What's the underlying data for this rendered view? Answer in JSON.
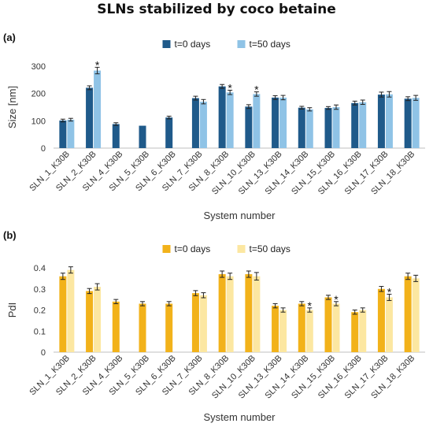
{
  "title": "SLNs stabilized by coco betaine",
  "chart_data": [
    {
      "type": "bar",
      "panel_label": "(a)",
      "xlabel": "System number",
      "ylabel": "Size  [nm]",
      "ylim": [
        0,
        300
      ],
      "yticks": [
        "0",
        "100",
        "200",
        "300"
      ],
      "grid": false,
      "legend_position": "top",
      "categories": [
        "SLN_1_K30B",
        "SLN_2_K30B",
        "SLN_4_K30B",
        "SLN_5_K30B",
        "SLN_6_K30B",
        "SLN_7_K30B",
        "SLN_8_K30B",
        "SLN_10_K30B",
        "SLN_13_K30B",
        "SLN_14_K30B",
        "SLN_15_K30B",
        "SLN_16_K30B",
        "SLN_17_K30B",
        "SLN_18_K30B"
      ],
      "series": [
        {
          "name": "t=0 days",
          "color": "#1f5a8a",
          "values": [
            101,
            221,
            88,
            82,
            112,
            183,
            226,
            152,
            185,
            148,
            147,
            165,
            196,
            181
          ],
          "errors": [
            5,
            7,
            5,
            0,
            5,
            7,
            7,
            7,
            7,
            5,
            5,
            7,
            9,
            7
          ]
        },
        {
          "name": "t=50 days",
          "color": "#8fc3e6",
          "values": [
            104,
            284,
            null,
            null,
            null,
            170,
            204,
            198,
            185,
            142,
            150,
            168,
            197,
            184
          ],
          "errors": [
            5,
            12,
            0,
            0,
            0,
            8,
            8,
            8,
            8,
            6,
            8,
            8,
            10,
            9
          ]
        }
      ],
      "significance_marker": "*",
      "annotations": [
        {
          "category": "SLN_2_K30B",
          "series": 1,
          "text": "*"
        },
        {
          "category": "SLN_8_K30B",
          "series": 1,
          "text": "*"
        },
        {
          "category": "SLN_10_K30B",
          "series": 1,
          "text": "*"
        }
      ]
    },
    {
      "type": "bar",
      "panel_label": "(b)",
      "xlabel": "System number",
      "ylabel": "PdI",
      "ylim": [
        0,
        0.4
      ],
      "yticks": [
        "0",
        "0.1",
        "0.2",
        "0.3",
        "0.4"
      ],
      "grid": false,
      "legend_position": "top",
      "categories": [
        "SLN_1_K30B",
        "SLN_2_K30B",
        "SLN_4_K30B",
        "SLN_5_K30B",
        "SLN_6_K30B",
        "SLN_7_K30B",
        "SLN_8_K30B",
        "SLN_10_K30B",
        "SLN_13_K30B",
        "SLN_14_K30B",
        "SLN_15_K30B",
        "SLN_16_K30B",
        "SLN_17_K30B",
        "SLN_18_K30B"
      ],
      "series": [
        {
          "name": "t=0 days",
          "color": "#f2b21a",
          "values": [
            0.36,
            0.29,
            0.24,
            0.23,
            0.23,
            0.28,
            0.37,
            0.37,
            0.22,
            0.23,
            0.26,
            0.19,
            0.3,
            0.36
          ],
          "errors": [
            0.015,
            0.012,
            0.01,
            0.01,
            0.01,
            0.012,
            0.015,
            0.015,
            0.01,
            0.01,
            0.01,
            0.01,
            0.012,
            0.015
          ]
        },
        {
          "name": "t=50 days",
          "color": "#fce7a1",
          "values": [
            0.39,
            0.31,
            null,
            null,
            null,
            0.27,
            0.36,
            0.36,
            0.2,
            0.2,
            0.23,
            0.2,
            0.26,
            0.35
          ],
          "errors": [
            0.015,
            0.015,
            0,
            0,
            0,
            0.012,
            0.015,
            0.018,
            0.01,
            0.01,
            0.01,
            0.01,
            0.015,
            0.015
          ]
        }
      ],
      "significance_marker": "*",
      "annotations": [
        {
          "category": "SLN_14_K30B",
          "series": 1,
          "text": "*"
        },
        {
          "category": "SLN_15_K30B",
          "series": 1,
          "text": "*"
        },
        {
          "category": "SLN_17_K30B",
          "series": 1,
          "text": "*"
        }
      ]
    }
  ]
}
